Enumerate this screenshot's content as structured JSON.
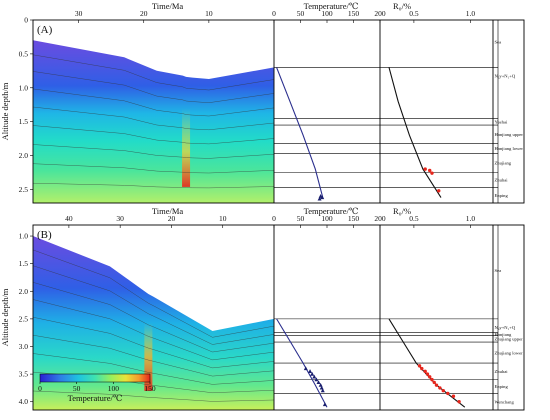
{
  "chart_data": [
    {
      "panel_label": "(A)",
      "type": "area",
      "xlabel": "Time/Ma",
      "ylabel": "Altitude depth/m",
      "x_ticks": [
        "30",
        "20",
        "10",
        "0"
      ],
      "y_ticks": [
        "0",
        "0.5",
        "1.0",
        "1.5",
        "2.0",
        "2.5"
      ],
      "xlim": [
        37,
        0
      ],
      "ylim": [
        0,
        2.7
      ],
      "burial_history": {
        "time": [
          37,
          23,
          18,
          14,
          13.5,
          12.5,
          10,
          0
        ],
        "basement_depth": [
          0.3,
          0.55,
          0.75,
          0.82,
          0.84,
          0.85,
          0.87,
          0.7
        ],
        "bottom_depth": [
          2.7,
          2.7,
          2.7,
          2.7,
          2.7,
          2.7,
          2.7,
          2.7
        ]
      },
      "temperature_profile": {
        "xlabel": "Temperature/℃",
        "x_ticks": [
          "0",
          "50",
          "100",
          "150",
          "200"
        ],
        "xlim": [
          0,
          200
        ],
        "curve_depth": [
          0.7,
          1.2,
          1.7,
          2.2,
          2.62
        ],
        "curve_temperature": [
          5,
          30,
          55,
          78,
          92
        ],
        "measured_depth": [
          2.6,
          2.62,
          2.64
        ],
        "measured_temperature": [
          88,
          91,
          86
        ]
      },
      "ro_profile": {
        "xlabel": "R₀/%",
        "x_ticks": [
          "0.5",
          "1.0"
        ],
        "xlim": [
          0.2,
          1.2
        ],
        "curve_depth": [
          0.7,
          1.2,
          1.7,
          2.2,
          2.62
        ],
        "curve_ro": [
          0.28,
          0.36,
          0.46,
          0.58,
          0.74
        ],
        "measured_depth": [
          2.2,
          2.22,
          2.26,
          2.52
        ],
        "measured_ro": [
          0.6,
          0.64,
          0.66,
          0.72
        ]
      },
      "strata": [
        {
          "name": "Sea",
          "top": 0.0,
          "bottom": 0.7
        },
        {
          "name": "N₂y+N₁+Q",
          "top": 0.7,
          "bottom": 1.45
        },
        {
          "name": "Yuehai",
          "top": 1.45,
          "bottom": 1.55
        },
        {
          "name": "Hanjiang upper",
          "top": 1.55,
          "bottom": 1.82
        },
        {
          "name": "Hanjiang lower",
          "top": 1.82,
          "bottom": 1.97
        },
        {
          "name": "Zhujiang",
          "top": 1.97,
          "bottom": 2.25
        },
        {
          "name": "Zhuhai",
          "top": 2.25,
          "bottom": 2.47
        },
        {
          "name": "Enping",
          "top": 2.47,
          "bottom": 2.7
        }
      ]
    },
    {
      "panel_label": "(B)",
      "type": "area",
      "xlabel": "Time/Ma",
      "ylabel": "Altitude depth/m",
      "x_ticks": [
        "40",
        "30",
        "20",
        "10",
        "0"
      ],
      "y_ticks": [
        "1.0",
        "1.5",
        "2.0",
        "2.5",
        "3.0",
        "3.5",
        "4.0"
      ],
      "xlim": [
        47,
        0
      ],
      "ylim": [
        0.8,
        4.15
      ],
      "burial_history": {
        "time": [
          47,
          32,
          26,
          24.5,
          23.5,
          12,
          0
        ],
        "basement_depth": [
          1.0,
          1.55,
          1.95,
          2.05,
          2.1,
          2.72,
          2.5
        ],
        "bottom_depth": [
          4.15,
          4.15,
          4.15,
          4.15,
          4.15,
          4.15,
          4.15
        ]
      },
      "temperature_profile": {
        "xlabel": "Temperature/℃",
        "x_ticks": [
          "0",
          "50",
          "100",
          "150",
          "200"
        ],
        "xlim": [
          0,
          200
        ],
        "curve_depth": [
          2.5,
          2.9,
          3.3,
          3.7,
          4.1
        ],
        "curve_temperature": [
          5,
          30,
          55,
          78,
          100
        ],
        "measured_depth": [
          3.4,
          3.45,
          3.5,
          3.55,
          3.6,
          3.65,
          3.7,
          3.75,
          3.8,
          4.05
        ],
        "measured_temperature": [
          60,
          68,
          72,
          76,
          80,
          84,
          88,
          90,
          92,
          96
        ]
      },
      "ro_profile": {
        "xlabel": "R₀/%",
        "x_ticks": [
          "0.5",
          "1.0"
        ],
        "xlim": [
          0.2,
          1.2
        ],
        "curve_depth": [
          2.5,
          2.9,
          3.3,
          3.7,
          4.1
        ],
        "curve_ro": [
          0.28,
          0.4,
          0.52,
          0.7,
          0.95
        ],
        "measured_depth": [
          3.35,
          3.4,
          3.45,
          3.5,
          3.55,
          3.6,
          3.65,
          3.7,
          3.75,
          3.8,
          3.85,
          3.9,
          4.0
        ],
        "measured_ro": [
          0.55,
          0.57,
          0.6,
          0.62,
          0.64,
          0.66,
          0.68,
          0.7,
          0.73,
          0.76,
          0.8,
          0.85,
          0.9
        ]
      },
      "strata": [
        {
          "name": "Sea",
          "top": 0.8,
          "bottom": 2.5
        },
        {
          "name": "N₂y+N₁+Q",
          "top": 2.5,
          "bottom": 2.75
        },
        {
          "name": "Hanjiang",
          "top": 2.75,
          "bottom": 2.8
        },
        {
          "name": "Zhujiang upper",
          "top": 2.8,
          "bottom": 2.92
        },
        {
          "name": "Zhujiang lower",
          "top": 2.92,
          "bottom": 3.3
        },
        {
          "name": "Zhuhai",
          "top": 3.3,
          "bottom": 3.6
        },
        {
          "name": "Enping",
          "top": 3.6,
          "bottom": 3.85
        },
        {
          "name": "Wenchang",
          "top": 3.85,
          "bottom": 4.15
        }
      ]
    }
  ],
  "colorbar": {
    "label": "Temperature/℃",
    "ticks": [
      "0",
      "50",
      "100",
      "150"
    ],
    "range": [
      0,
      150
    ],
    "colors": [
      "#2a1fd4",
      "#2f7be6",
      "#1fc3e0",
      "#3ee3b0",
      "#9af05a",
      "#e8e43a",
      "#f39a2c",
      "#e8261c"
    ]
  }
}
